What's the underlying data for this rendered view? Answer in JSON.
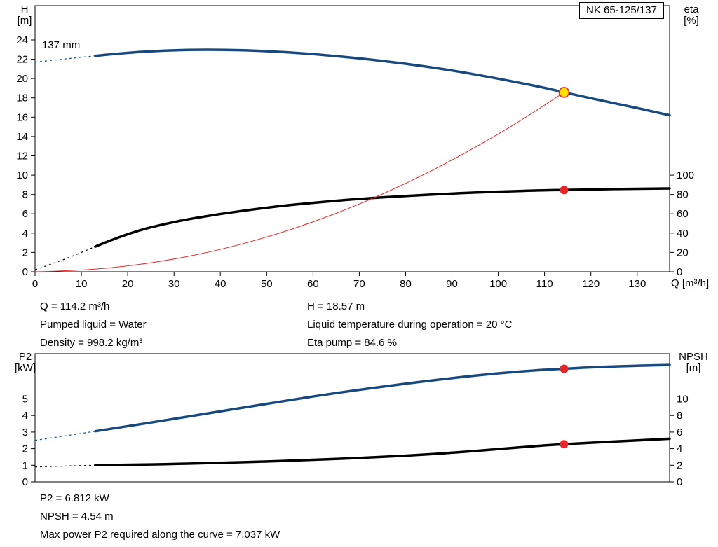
{
  "title_box": "NK 65-125/137",
  "labels": {
    "h_axis": "H\n[m]",
    "eta_axis": "eta\n[%]",
    "p2_axis": "P2\n[kW]",
    "npsh_axis": "NPSH\n[m]",
    "impeller": "137 mm"
  },
  "annotations": {
    "q": "Q = 114.2 m³/h",
    "pumped_liquid": "Pumped liquid = Water",
    "density": "Density = 998.2 kg/m³",
    "h": "H = 18.57 m",
    "liquid_temp": "Liquid temperature during operation = 20 °C",
    "eta_pump": "Eta pump = 84.6 %",
    "p2": "P2 = 6.812 kW",
    "npsh": "NPSH = 4.54 m",
    "max_power": "Max power P2 required along the curve = 7.037 kW"
  },
  "chart_data": [
    {
      "type": "line",
      "title": "NK 65-125/137 head and efficiency curves",
      "x_axis": {
        "label": "Q [m³/h]",
        "min": 0,
        "max": 137,
        "ticks": [
          0,
          10,
          20,
          30,
          40,
          50,
          60,
          70,
          80,
          90,
          100,
          110,
          120,
          130
        ]
      },
      "y_left": {
        "label": "H [m]",
        "min": 0,
        "max": 24,
        "ticks": [
          0,
          2,
          4,
          6,
          8,
          10,
          12,
          14,
          16,
          18,
          20,
          22,
          24
        ]
      },
      "y_right": {
        "label": "eta [%]",
        "min": 0,
        "max": 100,
        "ticks": [
          0,
          20,
          40,
          60,
          80,
          100
        ]
      },
      "legend": "none",
      "grid": false,
      "series": [
        {
          "name": "head-curve-137mm",
          "axis": "left",
          "color": "#17497E",
          "width": 3.5,
          "dash": [
            [
              0,
              21.7
            ],
            [
              6,
              22.0
            ],
            [
              13,
              22.35
            ]
          ],
          "points": [
            [
              13,
              22.35
            ],
            [
              20,
              22.7
            ],
            [
              30,
              22.95
            ],
            [
              40,
              23.0
            ],
            [
              50,
              22.85
            ],
            [
              60,
              22.55
            ],
            [
              70,
              22.1
            ],
            [
              80,
              21.55
            ],
            [
              90,
              20.85
            ],
            [
              100,
              20.0
            ],
            [
              110,
              19.05
            ],
            [
              114.2,
              18.57
            ],
            [
              120,
              17.95
            ],
            [
              130,
              16.95
            ],
            [
              137,
              16.2
            ]
          ]
        },
        {
          "name": "efficiency-curve",
          "axis": "right",
          "color": "#000000",
          "width": 3.5,
          "dash": [
            [
              0,
              2
            ],
            [
              6,
              12
            ],
            [
              13,
              26
            ]
          ],
          "points": [
            [
              13,
              26
            ],
            [
              20,
              40
            ],
            [
              30,
              52
            ],
            [
              40,
              60
            ],
            [
              50,
              66.5
            ],
            [
              60,
              71.5
            ],
            [
              70,
              75.5
            ],
            [
              80,
              78.5
            ],
            [
              90,
              81
            ],
            [
              100,
              83
            ],
            [
              110,
              84.4
            ],
            [
              114.2,
              84.6
            ],
            [
              120,
              85.2
            ],
            [
              130,
              86
            ],
            [
              137,
              86.3
            ]
          ]
        },
        {
          "name": "duty-system-curve",
          "axis": "left",
          "color": "#E8262A",
          "width": 1,
          "points": [
            [
              0,
              0
            ],
            [
              10,
              0.14
            ],
            [
              20,
              0.57
            ],
            [
              30,
              1.28
            ],
            [
              40,
              2.28
            ],
            [
              50,
              3.56
            ],
            [
              60,
              5.13
            ],
            [
              70,
              6.98
            ],
            [
              80,
              9.11
            ],
            [
              90,
              11.53
            ],
            [
              100,
              14.24
            ],
            [
              107,
              16.3
            ],
            [
              114.2,
              18.57
            ]
          ]
        }
      ],
      "markers": [
        {
          "name": "duty-point",
          "axis": "left",
          "x": 114.2,
          "y": 18.57,
          "r": 7,
          "fill": "#FFE100",
          "stroke": "#E8262A",
          "stroke_width": 1.6
        },
        {
          "name": "eta-duty-point",
          "axis": "right",
          "x": 114.2,
          "y": 84.6,
          "r": 5.5,
          "fill": "#E8262A",
          "stroke": "#E8262A",
          "stroke_width": 1
        }
      ]
    },
    {
      "type": "line",
      "title": "P2 and NPSH curves",
      "x_axis": {
        "label": "Q [m³/h]",
        "min": 0,
        "max": 137,
        "ticks": []
      },
      "y_left": {
        "label": "P2 [kW]",
        "min": 0,
        "max": 7.7,
        "ticks": [
          0,
          1,
          2,
          3,
          4,
          5
        ]
      },
      "y_right": {
        "label": "NPSH [m]",
        "min": 0,
        "max": 15.4,
        "ticks": [
          0,
          2,
          4,
          6,
          8,
          10
        ]
      },
      "legend": "none",
      "grid": false,
      "series": [
        {
          "name": "p2-curve",
          "axis": "left",
          "color": "#17497E",
          "width": 3.5,
          "dash": [
            [
              0,
              2.5
            ],
            [
              6,
              2.75
            ],
            [
              13,
              3.05
            ]
          ],
          "points": [
            [
              13,
              3.05
            ],
            [
              20,
              3.35
            ],
            [
              30,
              3.8
            ],
            [
              40,
              4.25
            ],
            [
              50,
              4.7
            ],
            [
              60,
              5.15
            ],
            [
              70,
              5.55
            ],
            [
              80,
              5.92
            ],
            [
              90,
              6.25
            ],
            [
              100,
              6.55
            ],
            [
              110,
              6.76
            ],
            [
              114.2,
              6.812
            ],
            [
              120,
              6.9
            ],
            [
              130,
              7.0
            ],
            [
              137,
              7.04
            ]
          ]
        },
        {
          "name": "npsh-curve",
          "axis": "right",
          "color": "#000000",
          "width": 3.5,
          "dash": [
            [
              0,
              1.8
            ],
            [
              6,
              1.9
            ],
            [
              13,
              2.0
            ]
          ],
          "points": [
            [
              13,
              2.0
            ],
            [
              20,
              2.05
            ],
            [
              30,
              2.15
            ],
            [
              40,
              2.3
            ],
            [
              50,
              2.45
            ],
            [
              60,
              2.65
            ],
            [
              70,
              2.87
            ],
            [
              80,
              3.15
            ],
            [
              90,
              3.5
            ],
            [
              100,
              3.95
            ],
            [
              110,
              4.4
            ],
            [
              114.2,
              4.54
            ],
            [
              120,
              4.72
            ],
            [
              130,
              5.0
            ],
            [
              137,
              5.2
            ]
          ]
        }
      ],
      "markers": [
        {
          "name": "p2-duty-point",
          "axis": "left",
          "x": 114.2,
          "y": 6.812,
          "r": 5.5,
          "fill": "#E8262A",
          "stroke": "#E8262A",
          "stroke_width": 1
        },
        {
          "name": "npsh-duty-point",
          "axis": "right",
          "x": 114.2,
          "y": 4.54,
          "r": 5.5,
          "fill": "#E8262A",
          "stroke": "#E8262A",
          "stroke_width": 1
        }
      ]
    }
  ]
}
